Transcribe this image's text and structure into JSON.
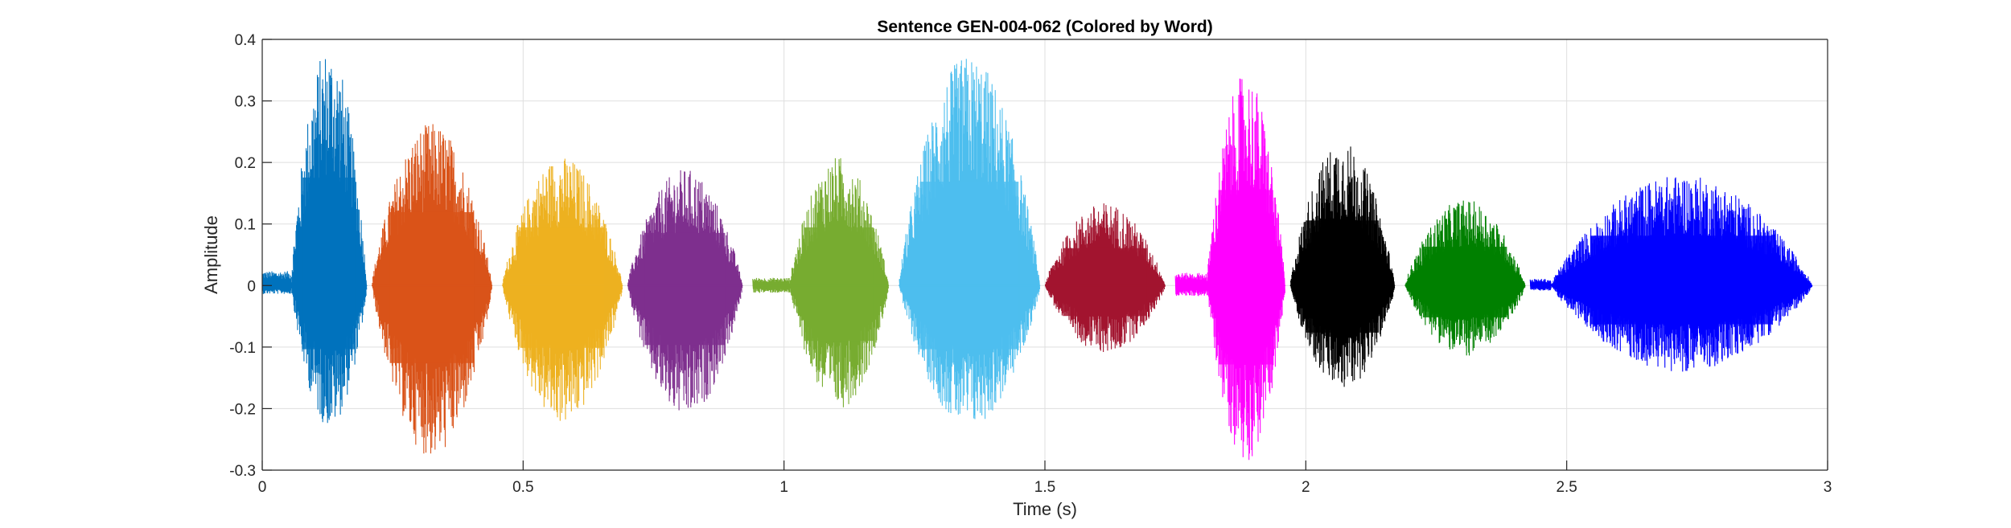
{
  "chart_data": {
    "type": "line",
    "title": "Sentence GEN-004-062 (Colored by Word)",
    "xlabel": "Time (s)",
    "ylabel": "Amplitude",
    "xlim": [
      0,
      3
    ],
    "ylim": [
      -0.3,
      0.4
    ],
    "xticks": [
      0,
      0.5,
      1,
      1.5,
      2,
      2.5,
      3
    ],
    "yticks": [
      -0.3,
      -0.2,
      -0.1,
      0,
      0.1,
      0.2,
      0.3,
      0.4
    ],
    "xtick_labels": [
      "0",
      "0.5",
      "1",
      "1.5",
      "2",
      "2.5",
      "3"
    ],
    "ytick_labels": [
      "-0.3",
      "-0.2",
      "-0.1",
      "0",
      "0.1",
      "0.2",
      "0.3",
      "0.4"
    ],
    "grid": true,
    "segments": [
      {
        "start": 0.0,
        "end": 0.2,
        "color": "#0072BD",
        "peak_pos": 0.39,
        "peak_neg": -0.23,
        "onset": 0.055
      },
      {
        "start": 0.21,
        "end": 0.44,
        "color": "#D95319",
        "peak_pos": 0.265,
        "peak_neg": -0.28,
        "onset": 0.0
      },
      {
        "start": 0.46,
        "end": 0.69,
        "color": "#EDB120",
        "peak_pos": 0.21,
        "peak_neg": -0.225,
        "onset": 0.0
      },
      {
        "start": 0.7,
        "end": 0.92,
        "color": "#7E2F8E",
        "peak_pos": 0.19,
        "peak_neg": -0.215,
        "onset": 0.0
      },
      {
        "start": 0.94,
        "end": 1.2,
        "color": "#77AC30",
        "peak_pos": 0.21,
        "peak_neg": -0.2,
        "onset": 0.07
      },
      {
        "start": 1.22,
        "end": 1.49,
        "color": "#4DBEEE",
        "peak_pos": 0.375,
        "peak_neg": -0.23,
        "onset": 0.0
      },
      {
        "start": 1.5,
        "end": 1.73,
        "color": "#A2142F",
        "peak_pos": 0.135,
        "peak_neg": -0.11,
        "onset": 0.0
      },
      {
        "start": 1.75,
        "end": 1.96,
        "color": "#FF00FF",
        "peak_pos": 0.345,
        "peak_neg": -0.285,
        "onset": 0.06
      },
      {
        "start": 1.97,
        "end": 2.17,
        "color": "#000000",
        "peak_pos": 0.235,
        "peak_neg": -0.17,
        "onset": 0.0
      },
      {
        "start": 2.19,
        "end": 2.42,
        "color": "#008000",
        "peak_pos": 0.14,
        "peak_neg": -0.115,
        "onset": 0.0
      },
      {
        "start": 2.43,
        "end": 2.97,
        "color": "#0000FF",
        "peak_pos": 0.18,
        "peak_neg": -0.14,
        "onset": 0.04
      }
    ]
  }
}
